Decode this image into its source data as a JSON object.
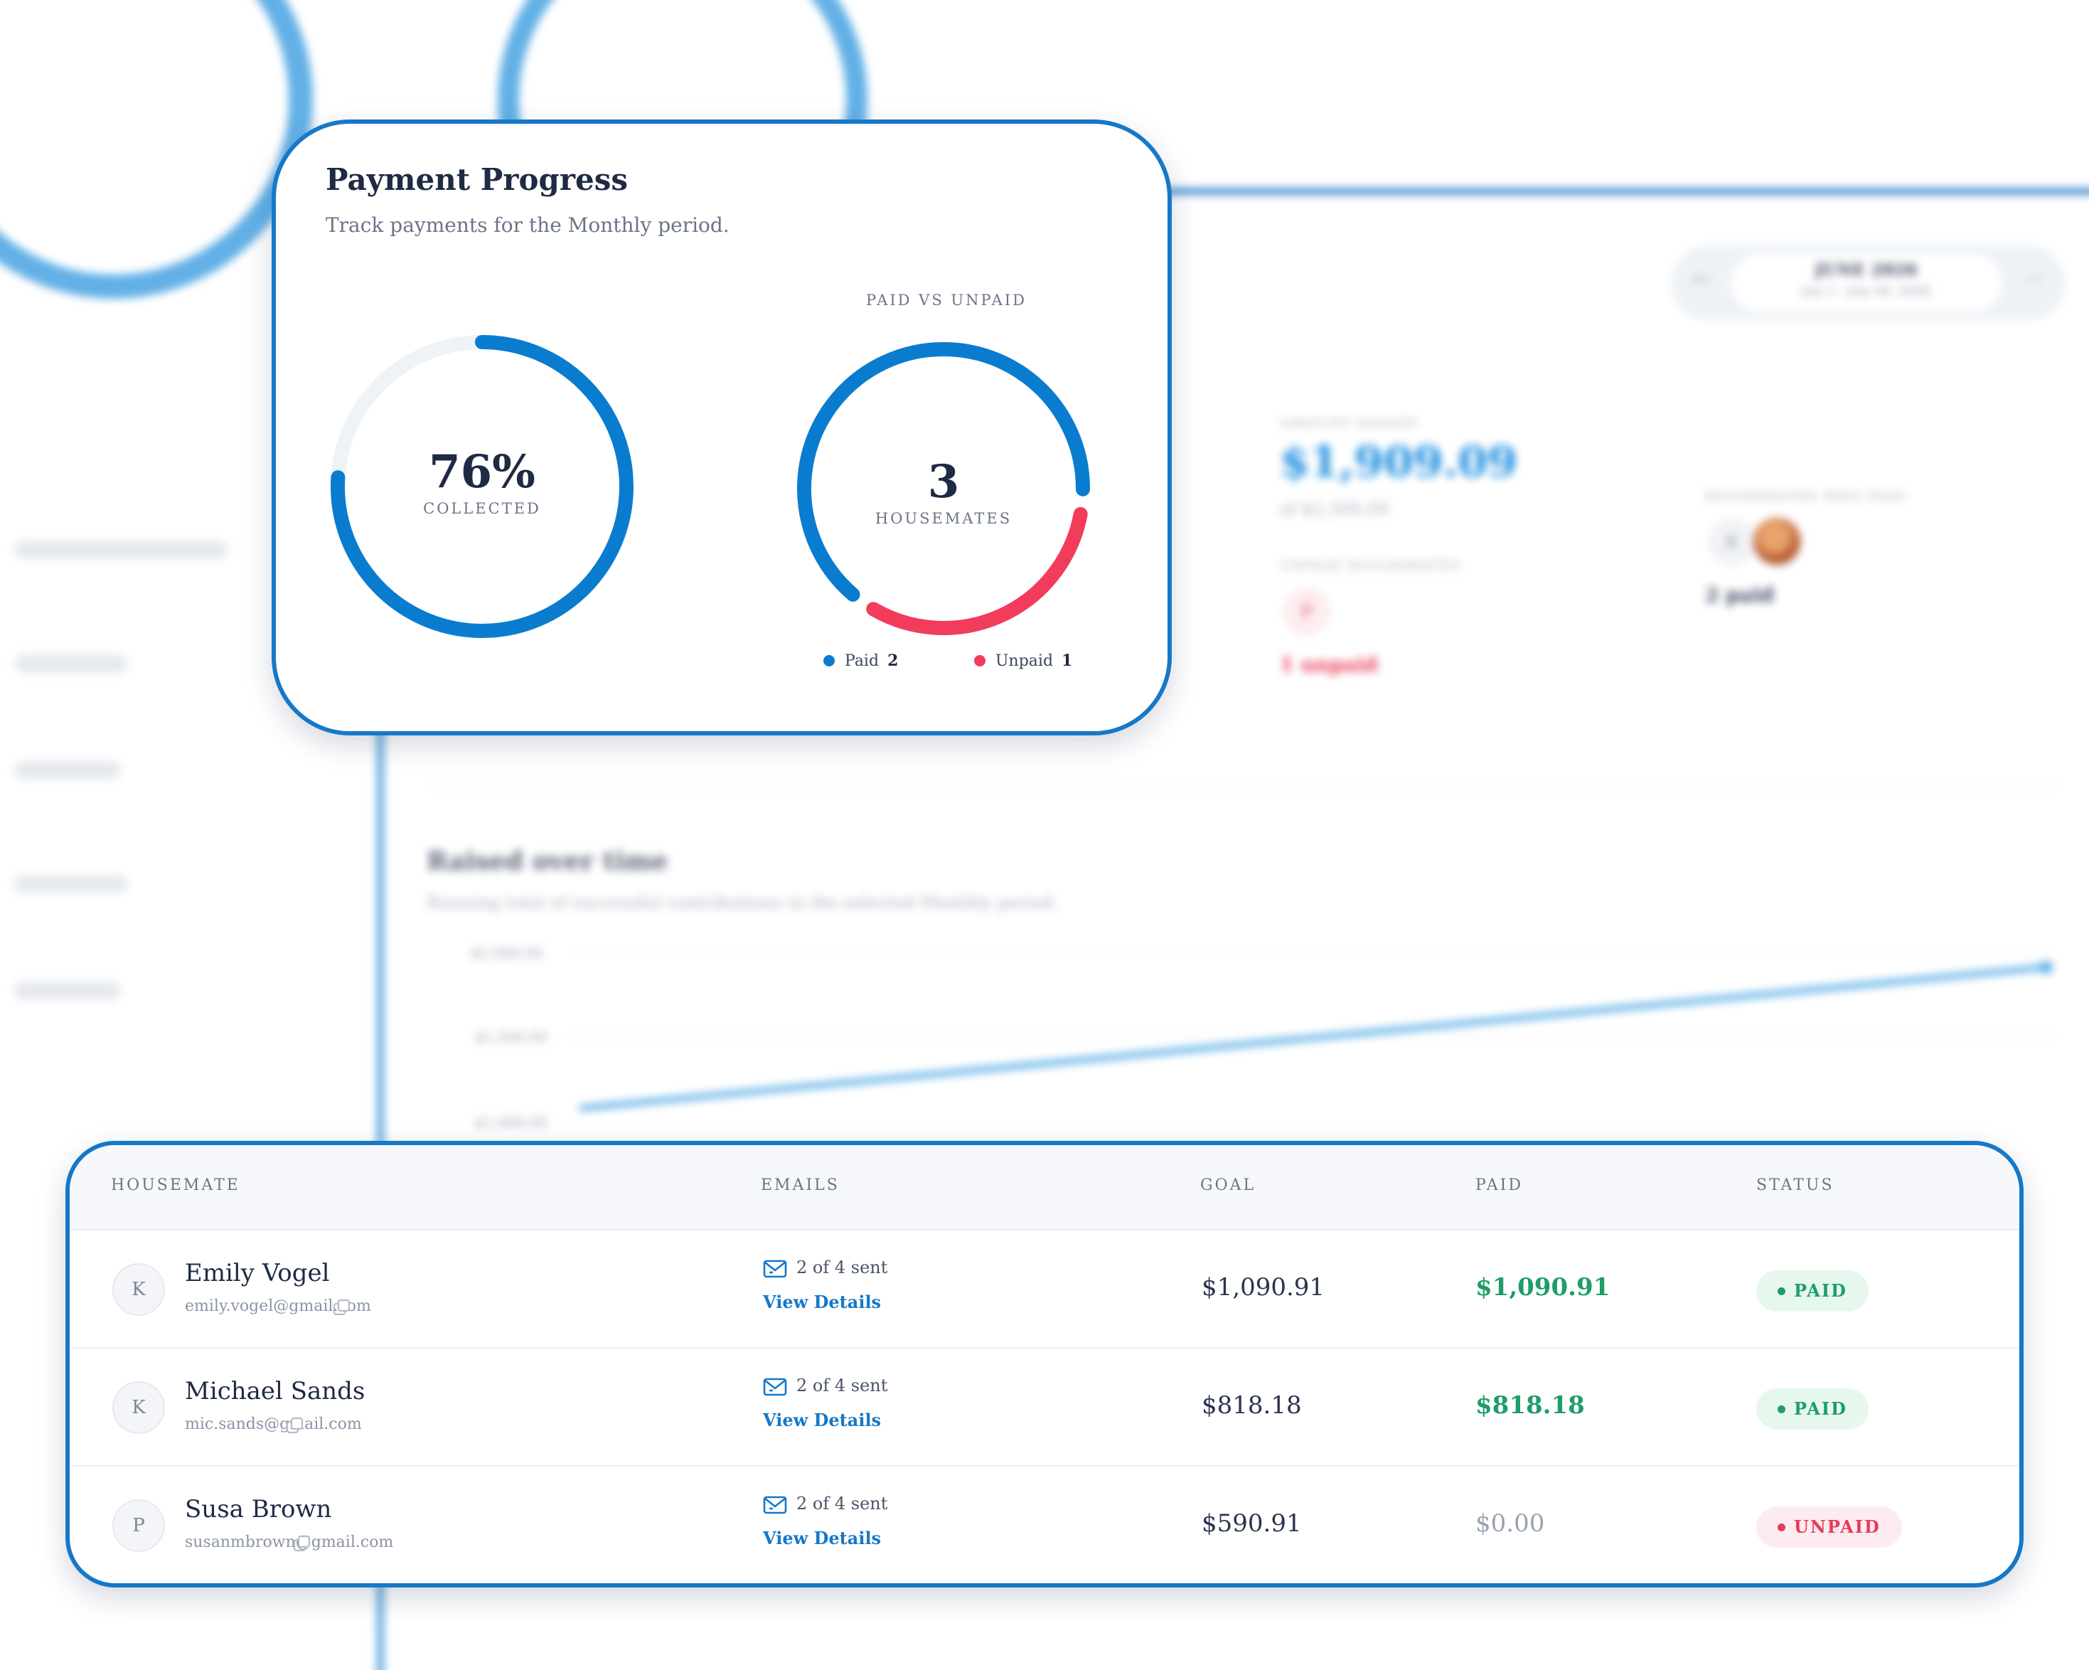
{
  "background": {
    "period_label": "JUNE 2026",
    "period_range": "Jun 1 - Jun 30, 2026",
    "amount_raised_label": "AMOUNT RAISED",
    "amount_raised": "$1,909.09",
    "amount_goal": "of $2,500.00",
    "unpaid_label": "UNPAID HOUSEMATES",
    "unpaid_avatar": "P",
    "unpaid_count": "1 unpaid",
    "paid_label": "HOUSEMATES WHO PAID",
    "paid_avatar": "K",
    "paid_count": "2 paid",
    "chart_title": "Raised over time",
    "chart_subtitle": "Running total of successful contributions in the selected Monthly period.",
    "y_ticks": [
      "$2,000.00",
      "$1,500.00",
      "$1,000.00"
    ]
  },
  "progress": {
    "title": "Payment Progress",
    "subtitle": "Track payments for the Monthly period.",
    "collected_percent": 76,
    "collected_value": "76%",
    "collected_caption": "COLLECTED",
    "split_label": "PAID VS UNPAID",
    "housemates_value": "3",
    "housemates_caption": "HOUSEMATES",
    "legend_paid_label": "Paid",
    "legend_paid_count": "2",
    "legend_unpaid_label": "Unpaid",
    "legend_unpaid_count": "1",
    "colors": {
      "primary": "#0a7ccf",
      "unpaid": "#f23c5c",
      "track": "#eef3f8"
    }
  },
  "table": {
    "headers": {
      "housemate": "HOUSEMATE",
      "emails": "EMAILS",
      "goal": "GOAL",
      "paid": "PAID",
      "status": "STATUS"
    },
    "rows": [
      {
        "avatar": "K",
        "name": "Emily Vogel",
        "email": "emily.vogel@gmail.com",
        "sent": "2 of 4 sent",
        "link": "View Details",
        "goal": "$1,090.91",
        "paid": "$1,090.91",
        "status": "PAID"
      },
      {
        "avatar": "K",
        "name": "Michael Sands",
        "email": "mic.sands@gmail.com",
        "sent": "2 of 4 sent",
        "link": "View Details",
        "goal": "$818.18",
        "paid": "$818.18",
        "status": "PAID"
      },
      {
        "avatar": "P",
        "name": "Susa Brown",
        "email": "susanmbrown@gmail.com",
        "sent": "2 of 4 sent",
        "link": "View Details",
        "goal": "$590.91",
        "paid": "$0.00",
        "status": "UNPAID"
      }
    ],
    "colors": {
      "paid_text": "#1f9d68",
      "unpaid_paid_text": "#9aa2b1",
      "paid_badge_bg": "#e6f7ee",
      "unpaid_badge_bg": "#fdecef",
      "unpaid_badge_text": "#e83a5a"
    }
  }
}
